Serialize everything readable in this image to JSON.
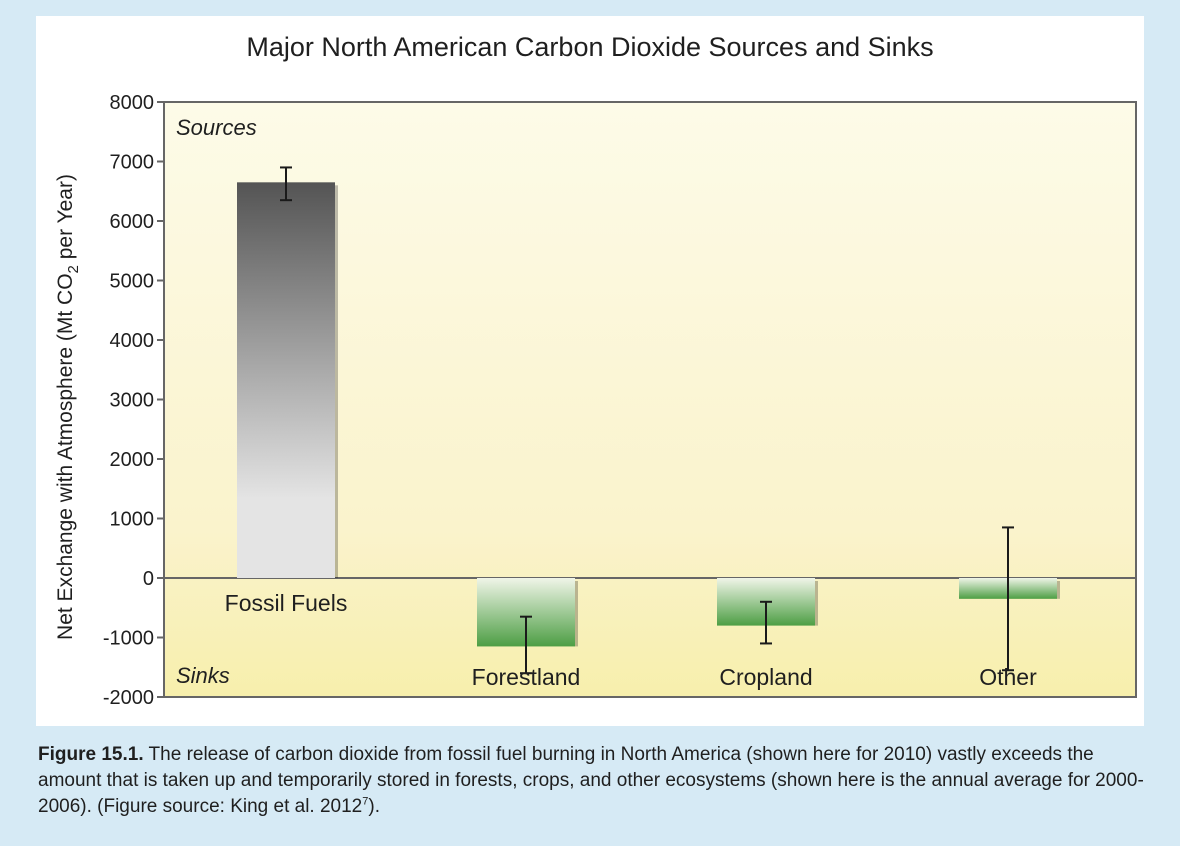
{
  "chart_data": {
    "type": "bar",
    "title": "Major North American Carbon Dioxide Sources and Sinks",
    "ylabel_main": "Net Exchange with Atmosphere (Mt CO",
    "ylabel_sub": "2",
    "ylabel_end": " per Year)",
    "ylim": [
      -2000,
      8000
    ],
    "yticks": [
      8000,
      7000,
      6000,
      5000,
      4000,
      3000,
      2000,
      1000,
      0,
      -1000,
      -2000
    ],
    "categories": [
      "Fossil Fuels",
      "Forestland",
      "Cropland",
      "Other"
    ],
    "values": [
      6650,
      -1150,
      -800,
      -350
    ],
    "error_low": [
      6350,
      -1600,
      -1100,
      -1550
    ],
    "error_high": [
      6900,
      -650,
      -400,
      850
    ],
    "sources_label": "Sources",
    "sinks_label": "Sinks",
    "colors": {
      "source_top": "#545454",
      "source_bottom": "#e4e4e4",
      "sink_top": "#f0f5e8",
      "sink_bottom": "#4d9e44",
      "plot_top": "#fdfbe8",
      "plot_bottom": "#f7efac",
      "axis": "#666666"
    }
  },
  "caption": {
    "label": "Figure 15.1.",
    "text_before_sup": " The release of carbon dioxide from fossil fuel burning in North America (shown here for 2010) vastly exceeds the amount that is taken up and temporarily stored in forests, crops, and other ecosystems (shown here is the annual average for 2000-2006). (Figure source: King et al. 2012",
    "sup": "7",
    "text_after_sup": ")."
  }
}
